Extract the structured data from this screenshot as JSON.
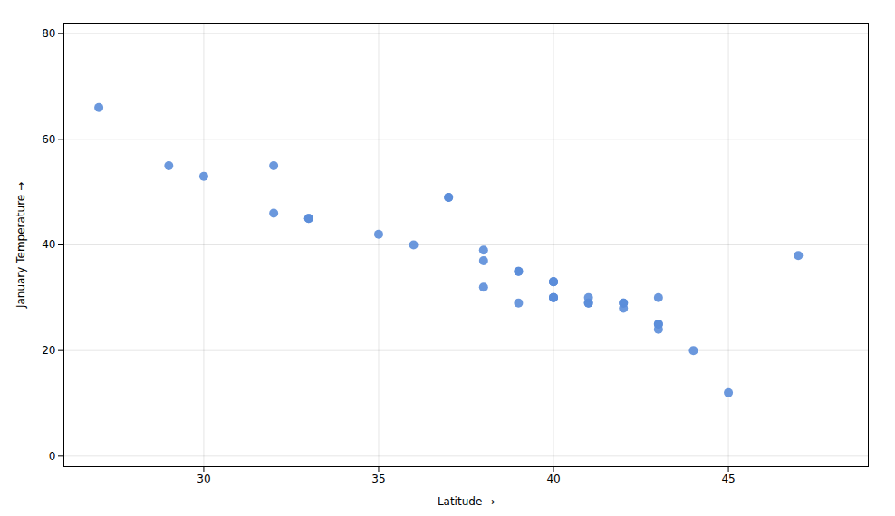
{
  "chart_data": {
    "type": "scatter",
    "xlabel": "Latitude",
    "ylabel": "January Temperature",
    "color": "#5b8dd9",
    "marker": "circle",
    "grid": true,
    "xlim": [
      26,
      49
    ],
    "ylim": [
      -2,
      82
    ],
    "xticks": [
      30,
      35,
      40,
      45
    ],
    "yticks": [
      0,
      20,
      40,
      60,
      80
    ],
    "x": [
      27,
      29,
      30,
      32,
      32,
      33,
      33,
      35,
      36,
      37,
      37,
      38,
      38,
      38,
      39,
      39,
      39,
      40,
      40,
      40,
      40,
      40,
      40,
      41,
      41,
      41,
      42,
      42,
      42,
      43,
      43,
      43,
      43,
      44,
      45,
      47
    ],
    "values": [
      66,
      55,
      53,
      46,
      55,
      45,
      45,
      42,
      40,
      49,
      49,
      39,
      37,
      32,
      35,
      35,
      29,
      33,
      33,
      33,
      30,
      30,
      30,
      29,
      29,
      30,
      29,
      28,
      29,
      30,
      25,
      24,
      25,
      20,
      12,
      38
    ]
  }
}
